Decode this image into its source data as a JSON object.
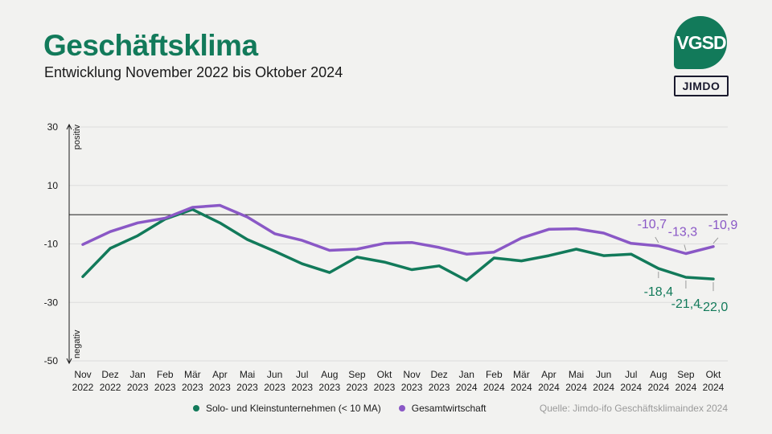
{
  "header": {
    "title": "Geschäftsklima",
    "subtitle": "Entwicklung November 2022 bis Oktober 2024"
  },
  "logos": {
    "vgsd": "VGSD",
    "jimdo": "JIMDO"
  },
  "colors": {
    "solo": "#127a5a",
    "gesamt": "#8a58c6",
    "accent": "#127a5a"
  },
  "source": "Quelle: Jimdo-ifo Geschäftsklimaindex 2024",
  "chart_data": {
    "type": "line",
    "title": "Geschäftsklima",
    "subtitle": "Entwicklung November 2022 bis Oktober 2024",
    "ylim": [
      -50,
      30
    ],
    "yticks": [
      "30",
      "10",
      "-10",
      "-30",
      "-50"
    ],
    "y_positive_label": "positiv",
    "y_negative_label": "negativ",
    "categories": [
      [
        "Nov",
        "2022"
      ],
      [
        "Dez",
        "2022"
      ],
      [
        "Jan",
        "2023"
      ],
      [
        "Feb",
        "2023"
      ],
      [
        "Mär",
        "2023"
      ],
      [
        "Apr",
        "2023"
      ],
      [
        "Mai",
        "2023"
      ],
      [
        "Jun",
        "2023"
      ],
      [
        "Jul",
        "2023"
      ],
      [
        "Aug",
        "2023"
      ],
      [
        "Sep",
        "2023"
      ],
      [
        "Okt",
        "2023"
      ],
      [
        "Nov",
        "2023"
      ],
      [
        "Dez",
        "2023"
      ],
      [
        "Jan",
        "2024"
      ],
      [
        "Feb",
        "2024"
      ],
      [
        "Mär",
        "2024"
      ],
      [
        "Apr",
        "2024"
      ],
      [
        "Mai",
        "2024"
      ],
      [
        "Jun",
        "2024"
      ],
      [
        "Jul",
        "2024"
      ],
      [
        "Aug",
        "2024"
      ],
      [
        "Sep",
        "2024"
      ],
      [
        "Okt",
        "2024"
      ]
    ],
    "series": [
      {
        "name": "Solo- und Kleinstunternehmen (< 10 MA)",
        "color": "#127a5a",
        "values": [
          -21.2,
          -11.5,
          -7.2,
          -1.5,
          1.8,
          -2.8,
          -8.5,
          -12.5,
          -16.8,
          -19.8,
          -14.5,
          -16.2,
          -18.8,
          -17.5,
          -22.5,
          -14.8,
          -15.8,
          -14.0,
          -11.8,
          -14.0,
          -13.5,
          -18.4,
          -21.4,
          -22.0
        ],
        "labels": {
          "21": "-18,4",
          "22": "-21,4",
          "23": "-22,0"
        }
      },
      {
        "name": "Gesamtwirtschaft",
        "color": "#8a58c6",
        "values": [
          -10.2,
          -5.8,
          -2.8,
          -1.2,
          2.5,
          3.2,
          -0.8,
          -6.5,
          -8.8,
          -12.2,
          -11.8,
          -9.8,
          -9.5,
          -11.2,
          -13.5,
          -12.8,
          -8.0,
          -5.0,
          -4.8,
          -6.3,
          -9.8,
          -10.7,
          -13.3,
          -10.9
        ],
        "labels": {
          "21": "-10,7",
          "22": "-13,3",
          "23": "-10,9"
        }
      }
    ]
  }
}
